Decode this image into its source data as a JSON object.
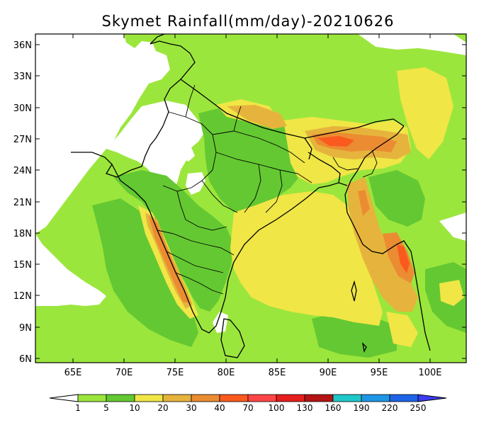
{
  "title": "Skymet Rainfall(mm/day)-20210626",
  "lat_labels": [
    "36N",
    "33N",
    "30N",
    "27N",
    "24N",
    "21N",
    "18N",
    "15N",
    "12N",
    "9N",
    "6N"
  ],
  "lon_labels": [
    "65E",
    "70E",
    "75E",
    "80E",
    "85E",
    "90E",
    "95E",
    "100E"
  ],
  "colorbar": {
    "labels": [
      "1",
      "5",
      "10",
      "20",
      "30",
      "40",
      "70",
      "100",
      "130",
      "160",
      "190",
      "220",
      "250"
    ],
    "colors": [
      "#ffffff",
      "#9be63c",
      "#64c832",
      "#f0e646",
      "#e6b43c",
      "#eb8c32",
      "#fa5a1e",
      "#ff4646",
      "#e61e1e",
      "#b41414",
      "#1ec8c8",
      "#1e96e6",
      "#1e64e6",
      "#3c3cf0"
    ]
  },
  "colors": {
    "ocean_light": "#9be63c",
    "land_green": "#64c832",
    "yellow": "#f0e646",
    "orange_light": "#e6b43c",
    "orange": "#eb8c32",
    "red": "#fa5a1e",
    "no_rain": "#ffffff"
  }
}
